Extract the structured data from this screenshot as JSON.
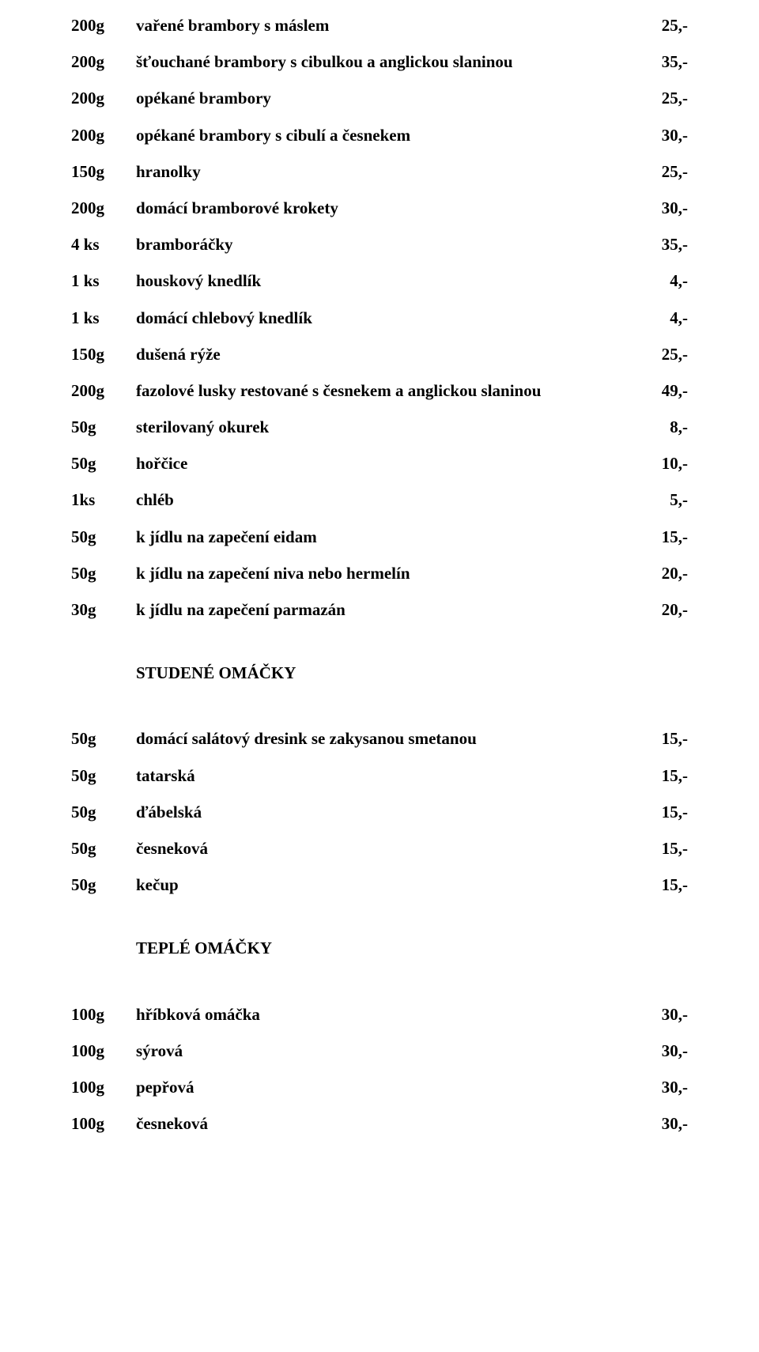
{
  "rows_top": [
    {
      "qty": "200g",
      "desc": "vařené brambory s máslem",
      "price": "25,-"
    },
    {
      "qty": "200g",
      "desc": "šťouchané brambory s cibulkou a anglickou slaninou",
      "price": "35,-"
    },
    {
      "qty": "200g",
      "desc": "opékané brambory",
      "price": "25,-"
    },
    {
      "qty": "200g",
      "desc": "opékané brambory s cibulí a česnekem",
      "price": "30,-"
    },
    {
      "qty": "150g",
      "desc": "hranolky",
      "price": "25,-"
    },
    {
      "qty": "200g",
      "desc": "domácí bramborové krokety",
      "price": "30,-"
    },
    {
      "qty": "4 ks",
      "desc": "bramboráčky",
      "price": "35,-"
    },
    {
      "qty": "1 ks",
      "desc": "houskový knedlík",
      "price": "4,-"
    },
    {
      "qty": "1 ks",
      "desc": "domácí chlebový knedlík",
      "price": "4,-"
    },
    {
      "qty": "150g",
      "desc": "dušená rýže",
      "price": "25,-"
    },
    {
      "qty": "200g",
      "desc": "fazolové lusky restované s česnekem a anglickou slaninou",
      "price": "49,-"
    },
    {
      "qty": "50g",
      "desc": "sterilovaný okurek",
      "price": "8,-"
    },
    {
      "qty": "50g",
      "desc": "hořčice",
      "price": "10,-"
    },
    {
      "qty": "1ks",
      "desc": "chléb",
      "price": "5,-"
    },
    {
      "qty": "50g",
      "desc": "k jídlu na zapečení eidam",
      "price": "15,-"
    },
    {
      "qty": "50g",
      "desc": "k jídlu na zapečení niva nebo hermelín",
      "price": "20,-"
    },
    {
      "qty": "30g",
      "desc": "k jídlu na zapečení parmazán",
      "price": "20,-"
    }
  ],
  "section1_title": "STUDENÉ OMÁČKY",
  "rows_section1": [
    {
      "qty": "50g",
      "desc": "domácí salátový dresink se zakysanou smetanou",
      "price": "15,-"
    },
    {
      "qty": "50g",
      "desc": "tatarská",
      "price": "15,-"
    },
    {
      "qty": "50g",
      "desc": "ďábelská",
      "price": "15,-"
    },
    {
      "qty": "50g",
      "desc": "česneková",
      "price": "15,-"
    },
    {
      "qty": "50g",
      "desc": "kečup",
      "price": "15,-"
    }
  ],
  "section2_title": "TEPLÉ OMÁČKY",
  "rows_section2": [
    {
      "qty": "100g",
      "desc": "hříbková omáčka",
      "price": "30,-"
    },
    {
      "qty": "100g",
      "desc": "sýrová",
      "price": "30,-"
    },
    {
      "qty": "100g",
      "desc": "pepřová",
      "price": "30,-"
    },
    {
      "qty": "100g",
      "desc": "česneková",
      "price": "30,-"
    }
  ]
}
